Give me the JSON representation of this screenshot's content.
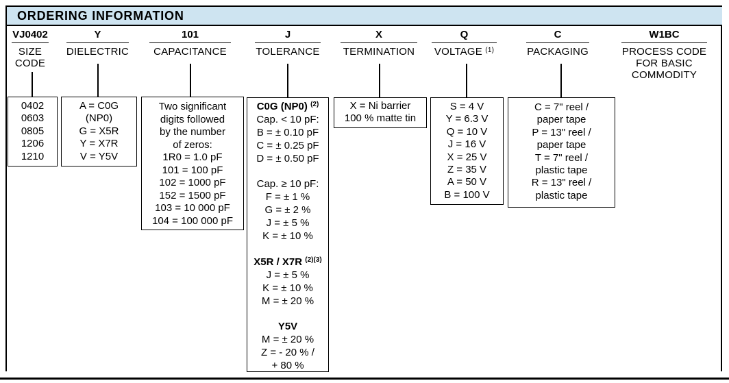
{
  "header": {
    "title": "ORDERING INFORMATION"
  },
  "colors": {
    "header_bg": "#cee4f1",
    "border": "#000000",
    "text": "#000000"
  },
  "columns": [
    {
      "code": "VJ0402",
      "label": "SIZE\nCODE"
    },
    {
      "code": "Y",
      "label": "DIELECTRIC"
    },
    {
      "code": "101",
      "label": "CAPACITANCE"
    },
    {
      "code": "J",
      "label": "TOLERANCE"
    },
    {
      "code": "X",
      "label": "TERMINATION"
    },
    {
      "code": "Q",
      "label": "VOLTAGE",
      "label_sup": "(1)"
    },
    {
      "code": "C",
      "label": "PACKAGING"
    },
    {
      "code": "W1BC",
      "label": "PROCESS CODE\nFOR BASIC\nCOMMODITY"
    }
  ],
  "boxes": {
    "size": {
      "lines": [
        {
          "t": "0402"
        },
        {
          "t": "0603"
        },
        {
          "t": "0805"
        },
        {
          "t": "1206"
        },
        {
          "t": "1210"
        }
      ]
    },
    "dielectric": {
      "lines": [
        {
          "t": "A = C0G"
        },
        {
          "t": "(NP0)"
        },
        {
          "t": "G = X5R"
        },
        {
          "t": "Y = X7R"
        },
        {
          "t": "V = Y5V"
        }
      ]
    },
    "capacitance": {
      "lines": [
        {
          "t": "Two significant"
        },
        {
          "t": "digits followed"
        },
        {
          "t": "by the number"
        },
        {
          "t": "of zeros:"
        },
        {
          "t": "1R0 = 1.0 pF"
        },
        {
          "t": "101 = 100 pF"
        },
        {
          "t": "102 = 1000 pF"
        },
        {
          "t": "152 = 1500 pF"
        },
        {
          "t": "103 = 10 000 pF"
        },
        {
          "t": "104 = 100 000 pF"
        }
      ]
    },
    "tolerance": {
      "lines": [
        {
          "t": "C0G (NP0) ",
          "b": true,
          "sup": "(2)"
        },
        {
          "t": "Cap. < 10 pF:"
        },
        {
          "t": "B = ± 0.10 pF"
        },
        {
          "t": "C = ± 0.25 pF"
        },
        {
          "t": "D = ± 0.50 pF"
        },
        {
          "t": ""
        },
        {
          "t": "Cap. ≥ 10 pF:"
        },
        {
          "t": "F = ± 1 %"
        },
        {
          "t": "G = ± 2 %"
        },
        {
          "t": "J = ± 5 %"
        },
        {
          "t": "K = ± 10 %"
        },
        {
          "t": ""
        },
        {
          "t": "X5R / X7R ",
          "b": true,
          "sup": "(2)(3)"
        },
        {
          "t": "J = ± 5 %"
        },
        {
          "t": "K = ± 10 %"
        },
        {
          "t": "M = ± 20 %"
        },
        {
          "t": ""
        },
        {
          "t": "Y5V",
          "b": true
        },
        {
          "t": "M = ± 20 %"
        },
        {
          "t": "Z = - 20 % /"
        },
        {
          "t": "+ 80 %"
        }
      ]
    },
    "termination": {
      "lines": [
        {
          "t": "X = Ni barrier"
        },
        {
          "t": "100 % matte tin"
        }
      ]
    },
    "voltage": {
      "lines": [
        {
          "t": "S = 4 V"
        },
        {
          "t": "Y = 6.3 V"
        },
        {
          "t": "Q = 10 V"
        },
        {
          "t": "J = 16 V"
        },
        {
          "t": "X = 25 V"
        },
        {
          "t": "Z = 35 V"
        },
        {
          "t": "A = 50 V"
        },
        {
          "t": "B = 100 V"
        }
      ]
    },
    "packaging": {
      "lines": [
        {
          "t": "C = 7\" reel /"
        },
        {
          "t": "paper tape"
        },
        {
          "t": "P = 13\" reel /"
        },
        {
          "t": "paper tape"
        },
        {
          "t": "T = 7\" reel /"
        },
        {
          "t": "plastic tape"
        },
        {
          "t": "R = 13\" reel /"
        },
        {
          "t": "plastic tape"
        }
      ]
    }
  }
}
